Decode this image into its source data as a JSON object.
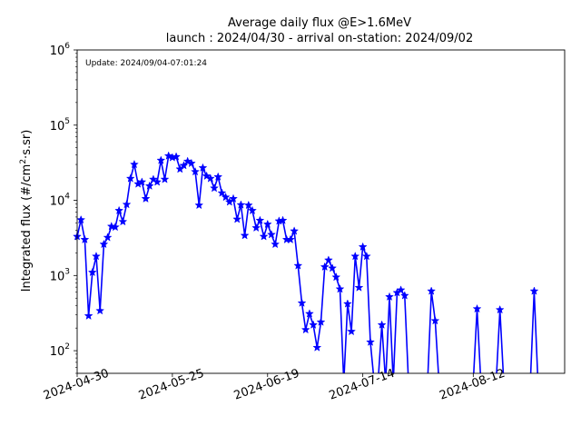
{
  "chart_data": {
    "type": "line",
    "title": "Average daily flux @E>1.6MeV",
    "subtitle": "launch : 2024/04/30 - arrival on-station: 2024/09/02",
    "ylabel": "Integrated flux (#/cm²·s.sr)",
    "ylabel_parts": {
      "pre": "Integrated flux (#/cm",
      "sup": "2",
      "post": "·s.sr)"
    },
    "annotation": "Update: 2024/09/04-07:01:24",
    "yscale": "log",
    "ylim": [
      50,
      1000000
    ],
    "xlim": [
      "2024-04-30",
      "2024-09-02"
    ],
    "y_ticks": [
      {
        "base": "10",
        "exp": "2",
        "value": 100
      },
      {
        "base": "10",
        "exp": "3",
        "value": 1000
      },
      {
        "base": "10",
        "exp": "4",
        "value": 10000
      },
      {
        "base": "10",
        "exp": "5",
        "value": 100000
      },
      {
        "base": "10",
        "exp": "6",
        "value": 1000000
      }
    ],
    "x_ticks": [
      "2024-04-30",
      "2024-05-25",
      "2024-06-19",
      "2024-07-14",
      "2024-08-12"
    ],
    "color": "#0000ff",
    "series": [
      {
        "x": [
          "2024-04-30",
          "2024-05-01",
          "2024-05-02",
          "2024-05-03",
          "2024-05-04",
          "2024-05-05",
          "2024-05-06",
          "2024-05-07",
          "2024-05-08",
          "2024-05-09",
          "2024-05-10",
          "2024-05-11",
          "2024-05-12",
          "2024-05-13",
          "2024-05-14",
          "2024-05-15",
          "2024-05-16",
          "2024-05-17",
          "2024-05-18",
          "2024-05-19",
          "2024-05-20",
          "2024-05-21",
          "2024-05-22",
          "2024-05-23",
          "2024-05-24",
          "2024-05-25",
          "2024-05-26",
          "2024-05-27",
          "2024-05-28",
          "2024-05-29",
          "2024-05-30",
          "2024-05-31",
          "2024-06-01",
          "2024-06-02",
          "2024-06-03",
          "2024-06-04",
          "2024-06-05",
          "2024-06-06",
          "2024-06-07",
          "2024-06-08",
          "2024-06-09",
          "2024-06-10",
          "2024-06-11",
          "2024-06-12",
          "2024-06-13",
          "2024-06-14",
          "2024-06-15",
          "2024-06-16",
          "2024-06-17",
          "2024-06-18",
          "2024-06-19",
          "2024-06-20",
          "2024-06-21",
          "2024-06-22",
          "2024-06-23",
          "2024-06-24",
          "2024-06-25",
          "2024-06-26",
          "2024-06-27",
          "2024-06-28",
          "2024-06-29",
          "2024-06-30",
          "2024-07-01",
          "2024-07-02",
          "2024-07-03",
          "2024-07-04",
          "2024-07-05",
          "2024-07-06",
          "2024-07-07",
          "2024-07-08",
          "2024-07-09",
          "2024-07-10",
          "2024-07-11",
          "2024-07-12",
          "2024-07-13",
          "2024-07-14",
          "2024-07-15",
          "2024-07-16",
          "2024-07-17",
          "2024-07-18",
          "2024-07-19",
          "2024-07-20",
          "2024-07-21",
          "2024-07-22",
          "2024-07-23",
          "2024-07-24",
          "2024-07-25",
          "2024-07-26",
          "2024-07-27",
          "2024-07-28",
          "2024-07-29",
          "2024-07-30",
          "2024-07-31",
          "2024-08-01",
          "2024-08-02",
          "2024-08-03",
          "2024-08-04",
          "2024-08-05",
          "2024-08-06",
          "2024-08-07",
          "2024-08-08",
          "2024-08-09",
          "2024-08-10",
          "2024-08-11",
          "2024-08-12",
          "2024-08-13",
          "2024-08-14",
          "2024-08-15",
          "2024-08-16",
          "2024-08-17",
          "2024-08-18",
          "2024-08-19",
          "2024-08-20",
          "2024-08-21",
          "2024-08-22",
          "2024-08-23",
          "2024-08-24",
          "2024-08-25",
          "2024-08-26",
          "2024-08-27",
          "2024-08-28",
          "2024-08-29",
          "2024-08-30",
          "2024-08-31",
          "2024-09-01",
          "2024-09-02"
        ],
        "y": [
          3300,
          5500,
          3000,
          290,
          1100,
          1800,
          340,
          2600,
          3200,
          4500,
          4400,
          7300,
          5200,
          8800,
          19500,
          30000,
          16500,
          17500,
          10500,
          15500,
          19000,
          17500,
          34000,
          19000,
          39000,
          37000,
          38000,
          26000,
          29000,
          33000,
          31000,
          24000,
          8600,
          27000,
          21000,
          19500,
          14500,
          20500,
          12500,
          11000,
          9500,
          10500,
          5600,
          8700,
          3400,
          8600,
          7300,
          4300,
          5400,
          3300,
          4800,
          3500,
          2600,
          5300,
          5400,
          3000,
          3000,
          3900,
          1350,
          430,
          190,
          310,
          220,
          110,
          240,
          1300,
          1600,
          1250,
          950,
          660,
          0,
          420,
          180,
          1800,
          690,
          2400,
          1800,
          130,
          0,
          0,
          220,
          0,
          520,
          0,
          590,
          640,
          540,
          0,
          0,
          0,
          0,
          0,
          0,
          620,
          250,
          0,
          0,
          0,
          0,
          0,
          0,
          0,
          0,
          0,
          0,
          360,
          0,
          0,
          0,
          0,
          0,
          350,
          0,
          0,
          0,
          0,
          0,
          0,
          0,
          0,
          620,
          0,
          0,
          0,
          0,
          0
        ]
      }
    ]
  }
}
